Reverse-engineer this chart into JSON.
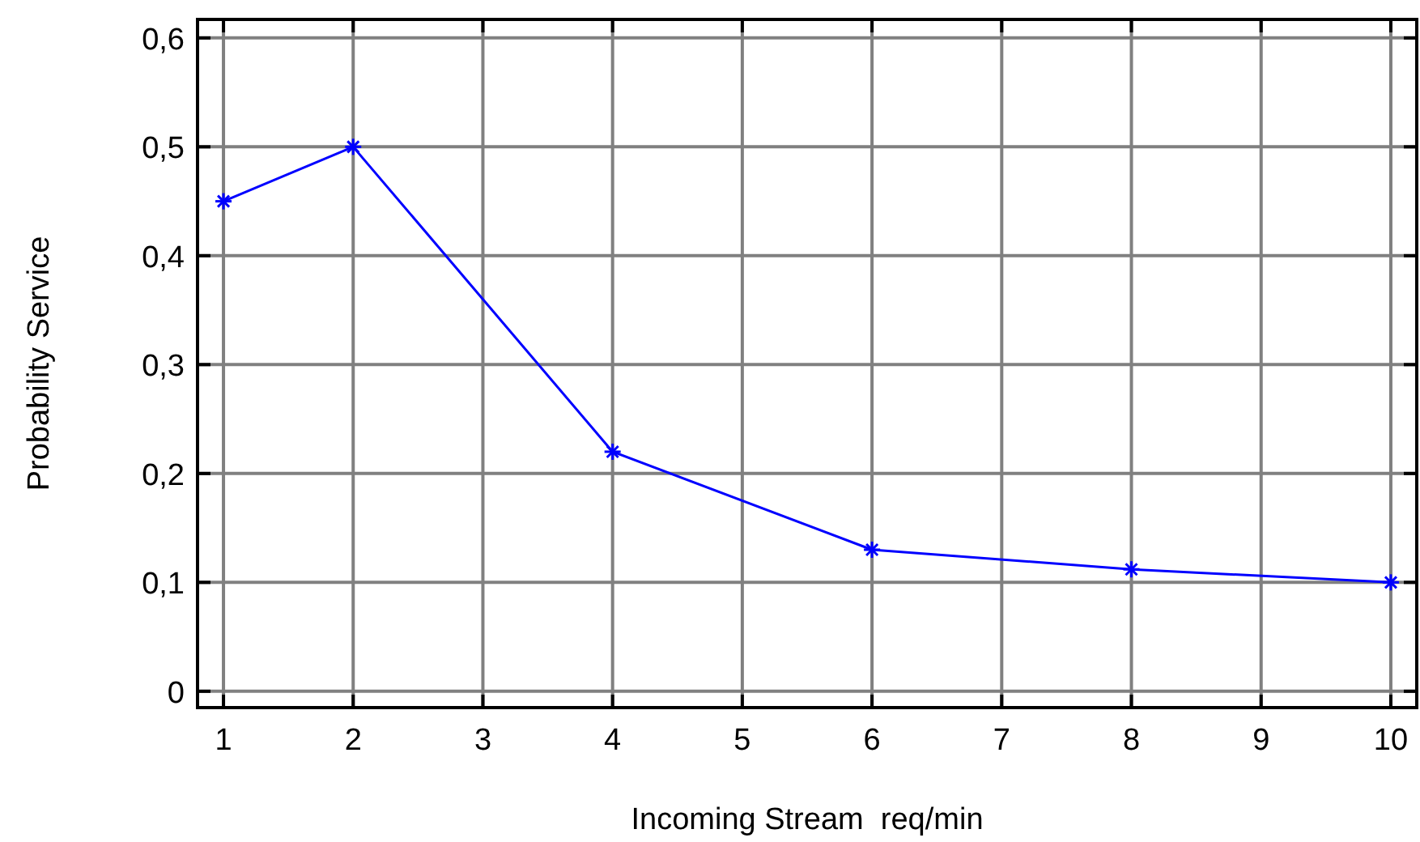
{
  "chart_data": {
    "type": "line",
    "xlabel": "Incoming Stream  req/min",
    "ylabel": "Probability Service",
    "x": [
      1,
      2,
      4,
      6,
      8,
      10
    ],
    "series": [
      {
        "color": "#0000ff",
        "values": [
          0.45,
          0.5,
          0.22,
          0.13,
          0.112,
          0.1
        ]
      }
    ],
    "xlim": [
      0.8,
      10.2
    ],
    "xticks": [
      1,
      2,
      3,
      4,
      5,
      6,
      7,
      8,
      9,
      10
    ],
    "ylim": [
      -0.015,
      0.617
    ],
    "yticks": [
      0,
      {
        "value": 0.1,
        "label": "0,1"
      },
      {
        "value": 0.2,
        "label": "0,2"
      },
      {
        "value": 0.3,
        "label": "0,3"
      },
      {
        "value": 0.4,
        "label": "0,4"
      },
      {
        "value": 0.5,
        "label": "0,5"
      },
      {
        "value": 0.6,
        "label": "0,6"
      }
    ],
    "grid": true,
    "marker": "cross",
    "line_style": "solid"
  }
}
